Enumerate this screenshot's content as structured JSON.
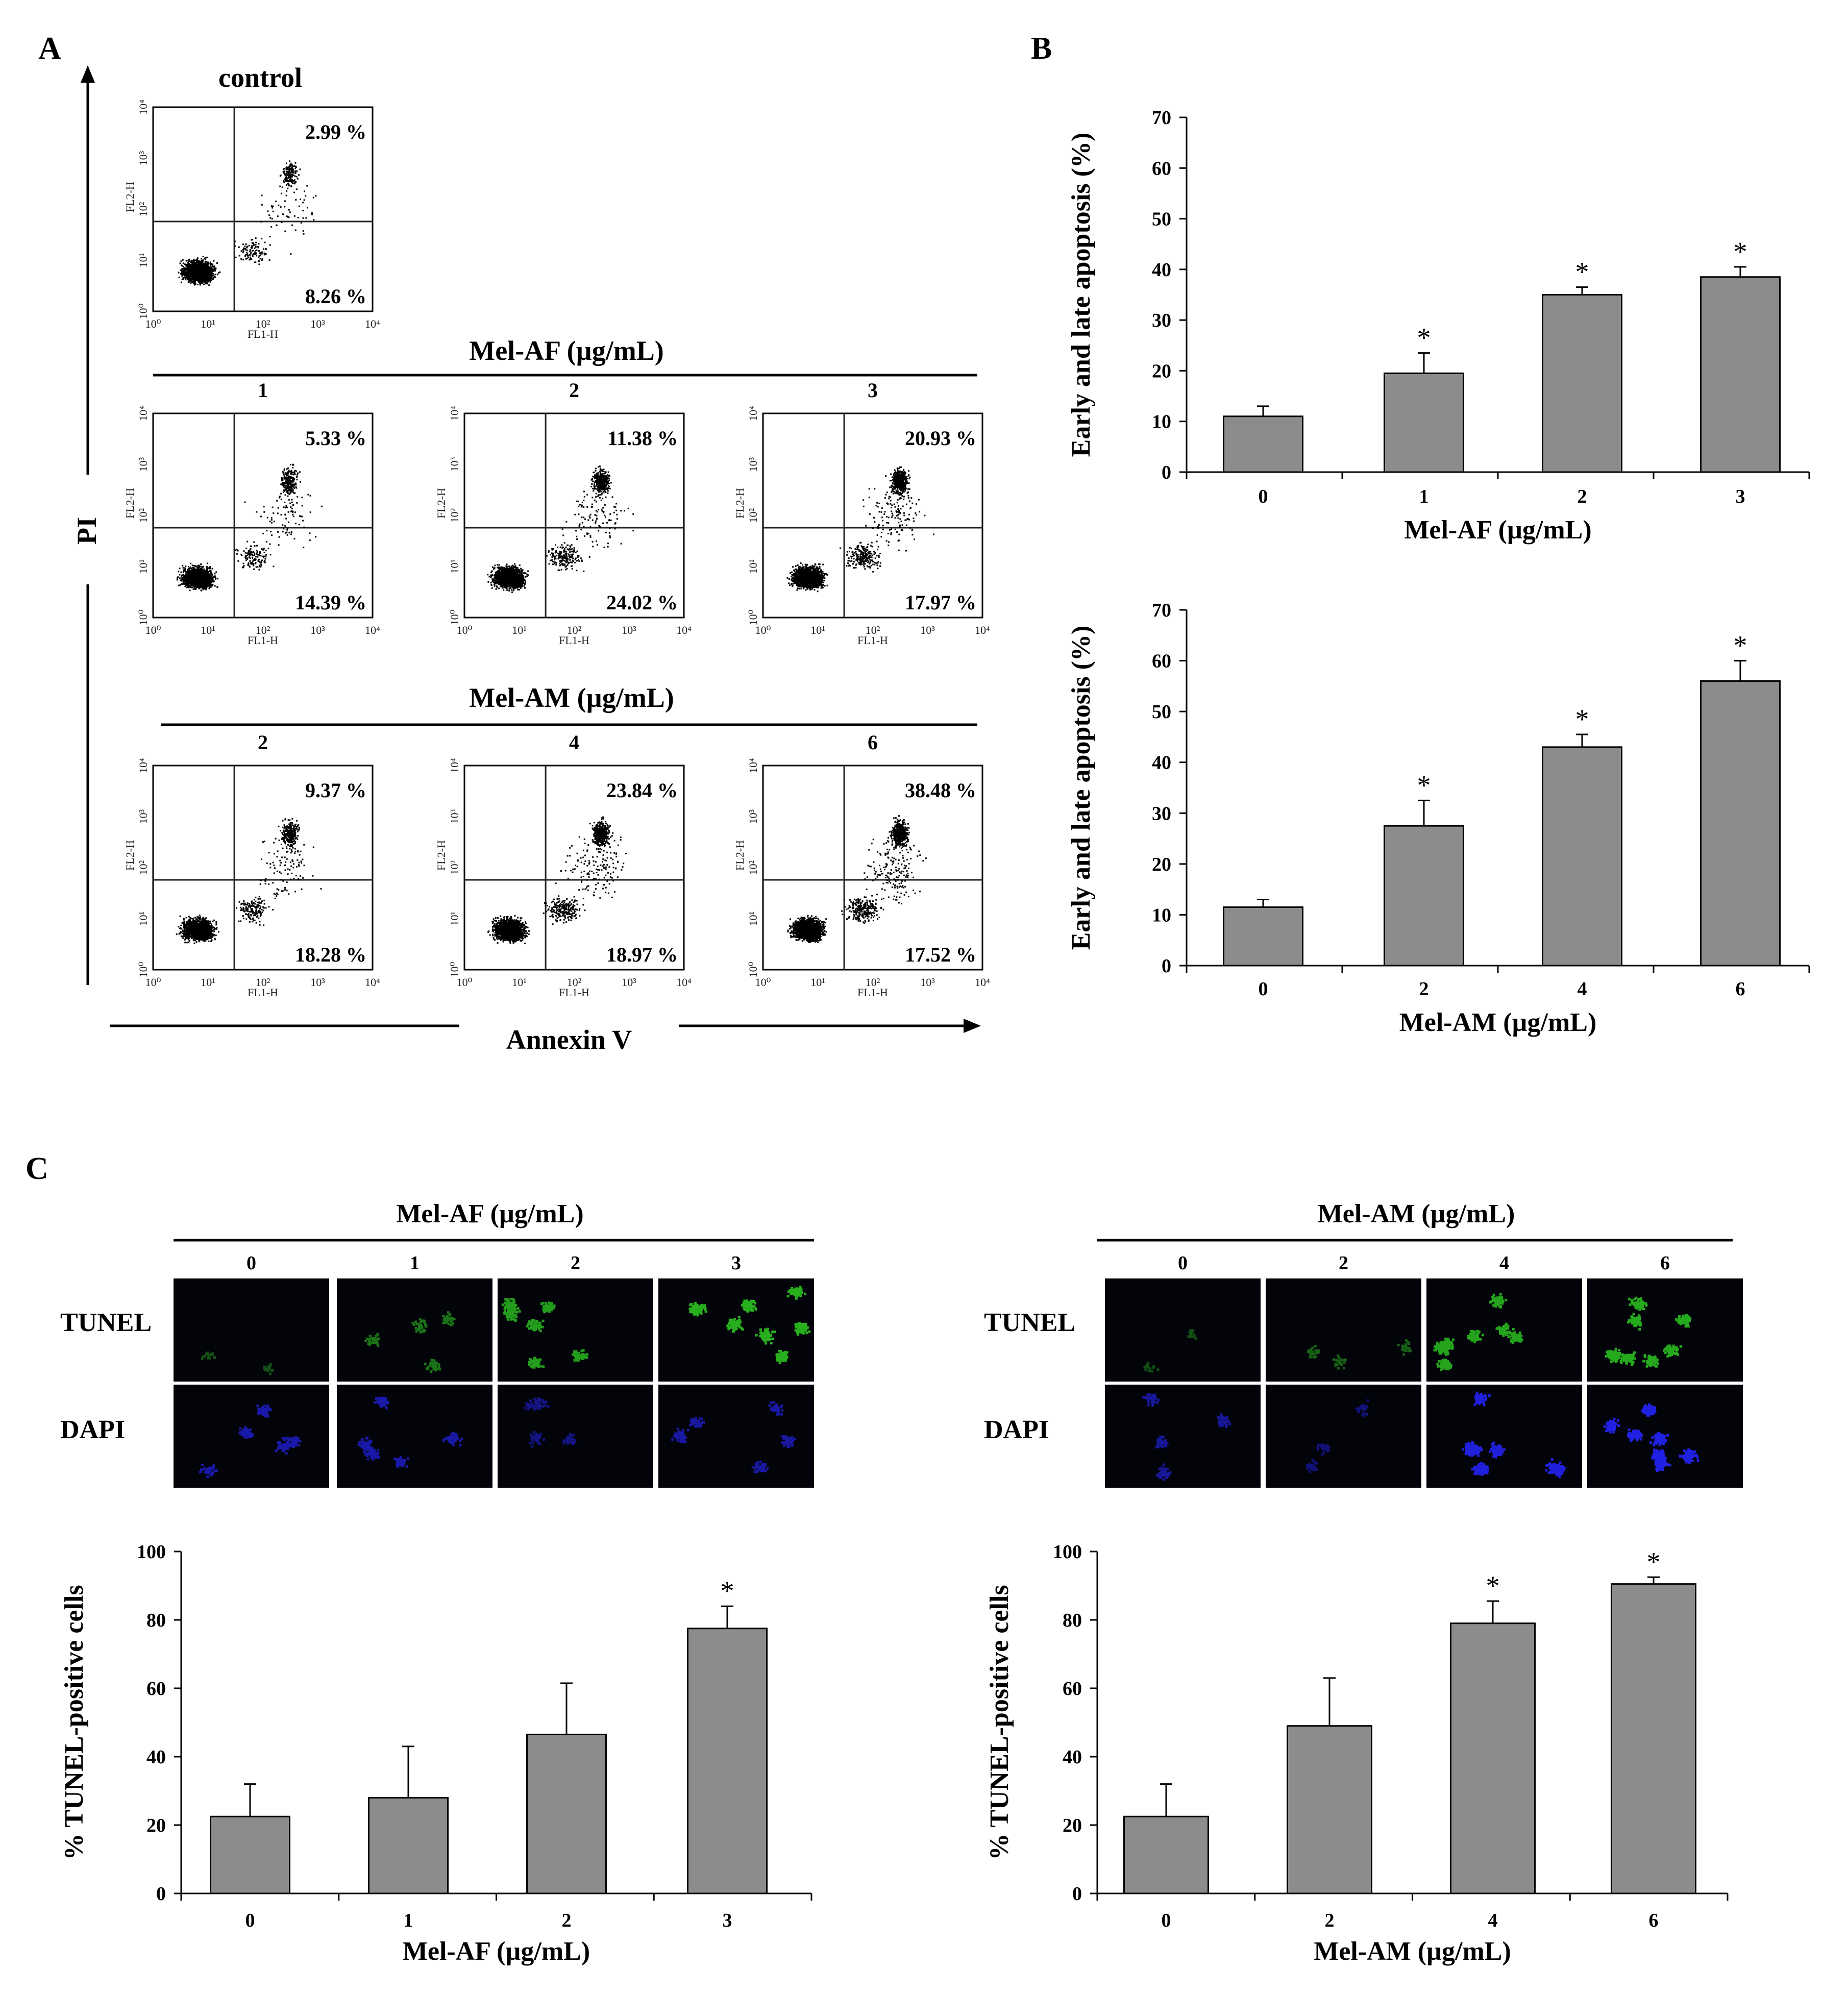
{
  "panel_labels": {
    "a": "A",
    "b": "B",
    "c": "C"
  },
  "colors": {
    "bar": "#8c8c8c",
    "axis": "#000000",
    "tunel": "#2ecc22",
    "dapi": "#2525ff"
  },
  "flow": {
    "y_axis_label": "PI",
    "x_axis_label": "Annexin V",
    "control_title": "control",
    "mel_af_title": "Mel-AF (µg/mL)",
    "mel_am_title": "Mel-AM (µg/mL)",
    "fl1_label": "FL1-H",
    "fl2_label": "FL2-H",
    "tick_labels": [
      "10⁰",
      "10¹",
      "10²",
      "10³",
      "10⁴"
    ],
    "plots": [
      {
        "dose": "",
        "group": "control",
        "upper": "2.99 %",
        "lower": "8.26 %",
        "density": 0.2
      },
      {
        "dose": "1",
        "group": "Mel-AF",
        "upper": "5.33 %",
        "lower": "14.39 %",
        "density": 0.35
      },
      {
        "dose": "2",
        "group": "Mel-AF",
        "upper": "11.38 %",
        "lower": "24.02 %",
        "density": 0.55
      },
      {
        "dose": "3",
        "group": "Mel-AF",
        "upper": "20.93 %",
        "lower": "17.97 %",
        "density": 0.7
      },
      {
        "dose": "2",
        "group": "Mel-AM",
        "upper": "9.37 %",
        "lower": "18.28 %",
        "density": 0.45
      },
      {
        "dose": "4",
        "group": "Mel-AM",
        "upper": "23.84 %",
        "lower": "18.97 %",
        "density": 0.75
      },
      {
        "dose": "6",
        "group": "Mel-AM",
        "upper": "38.48 %",
        "lower": "17.52 %",
        "density": 0.9
      }
    ]
  },
  "micro": {
    "left_title": "Mel-AF (µg/mL)",
    "right_title": "Mel-AM (µg/mL)",
    "row_labels": [
      "TUNEL",
      "DAPI"
    ],
    "left_doses": [
      "0",
      "1",
      "2",
      "3"
    ],
    "right_doses": [
      "0",
      "2",
      "4",
      "6"
    ]
  },
  "chart_data": [
    {
      "type": "bar",
      "id": "b-top",
      "categories": [
        "0",
        "1",
        "2",
        "3"
      ],
      "values": [
        11,
        19.5,
        35,
        38.5
      ],
      "errors": [
        2,
        4,
        1.5,
        2
      ],
      "significant": [
        false,
        true,
        true,
        true
      ],
      "sig_symbol": "*",
      "ylim": [
        0,
        70
      ],
      "yticks": [
        "0",
        "10",
        "20",
        "30",
        "40",
        "50",
        "60",
        "70"
      ],
      "ylabel": "Early and late apoptosis (%)",
      "xlabel": "Mel-AF (µg/mL)"
    },
    {
      "type": "bar",
      "id": "b-bottom",
      "categories": [
        "0",
        "2",
        "4",
        "6"
      ],
      "values": [
        11.5,
        27.5,
        43,
        56
      ],
      "errors": [
        1.5,
        5,
        2.5,
        4
      ],
      "significant": [
        false,
        true,
        true,
        true
      ],
      "sig_symbol": "*",
      "ylim": [
        0,
        70
      ],
      "yticks": [
        "0",
        "10",
        "20",
        "30",
        "40",
        "50",
        "60",
        "70"
      ],
      "ylabel": "Early and late apoptosis (%)",
      "xlabel": "Mel-AM (µg/mL)"
    },
    {
      "type": "bar",
      "id": "c-left",
      "categories": [
        "0",
        "1",
        "2",
        "3"
      ],
      "values": [
        22.5,
        28,
        46.5,
        77.5
      ],
      "errors": [
        9.5,
        15,
        15,
        6.5
      ],
      "significant": [
        false,
        false,
        false,
        true
      ],
      "sig_symbol": "*",
      "ylim": [
        0,
        100
      ],
      "yticks": [
        "0",
        "20",
        "40",
        "60",
        "80",
        "100"
      ],
      "ylabel": "% TUNEL-positive cells",
      "xlabel": "Mel-AF (µg/mL)"
    },
    {
      "type": "bar",
      "id": "c-right",
      "categories": [
        "0",
        "2",
        "4",
        "6"
      ],
      "values": [
        22.5,
        49,
        79,
        90.5
      ],
      "errors": [
        9.5,
        14,
        6.5,
        2
      ],
      "significant": [
        false,
        false,
        true,
        true
      ],
      "sig_symbol": "*",
      "ylim": [
        0,
        100
      ],
      "yticks": [
        "0",
        "20",
        "40",
        "60",
        "80",
        "100"
      ],
      "ylabel": "% TUNEL-positive cells",
      "xlabel": "Mel-AM (µg/mL)"
    }
  ]
}
